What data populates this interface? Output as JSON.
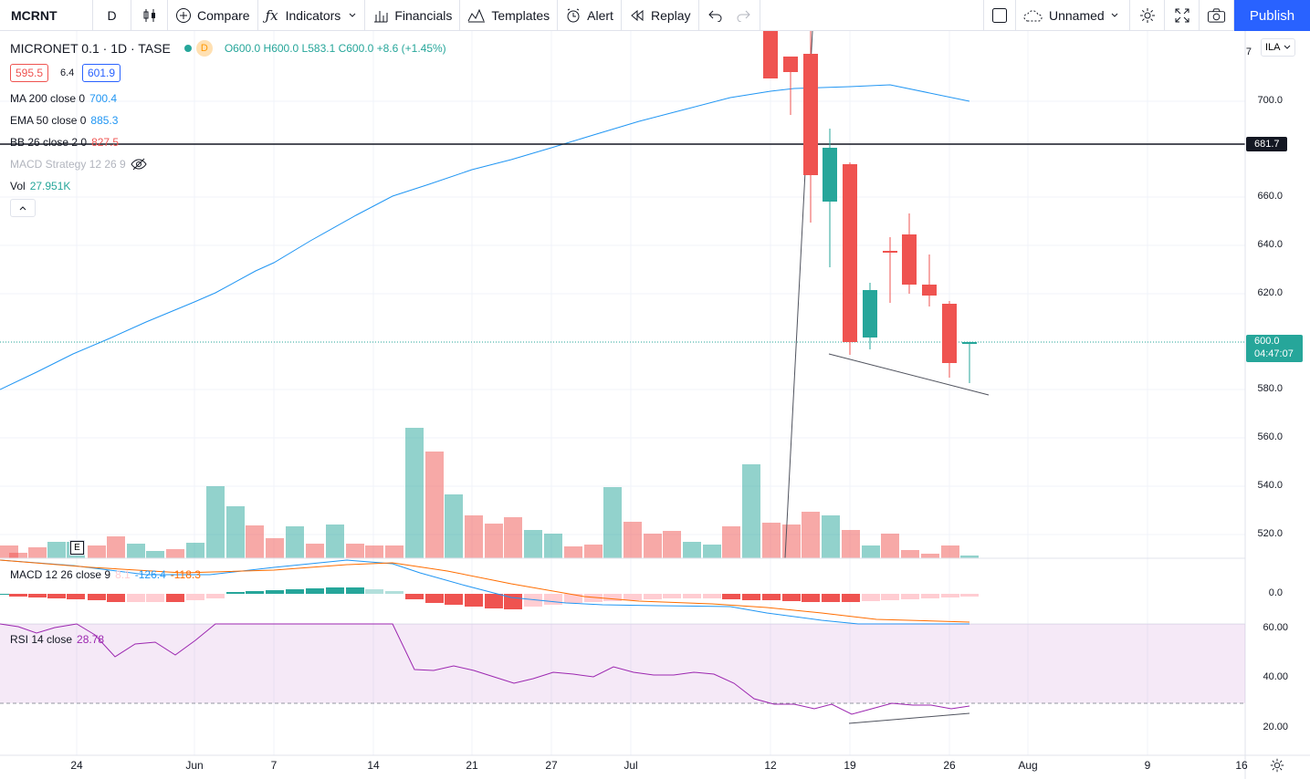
{
  "toolbar": {
    "symbol": "MCRNT",
    "interval": "D",
    "compare": "Compare",
    "indicators": "Indicators",
    "financials": "Financials",
    "templates": "Templates",
    "alert": "Alert",
    "replay": "Replay",
    "layout_name": "Unnamed",
    "publish": "Publish"
  },
  "legend": {
    "title": "MICRONET 0.1 · 1D · TASE",
    "badge": "D",
    "ohlc": "O600.0 H600.0 L583.1 C600.0 +8.6 (+1.45%)",
    "bid": "595.5",
    "spread": "6.4",
    "ask": "601.9",
    "ma_label": "MA 200 close 0",
    "ma_value": "700.4",
    "ema_label": "EMA 50 close 0",
    "ema_value": "885.3",
    "bb_label": "BB 26 close 2 0",
    "bb_value": "827.5",
    "macd_strategy": "MACD Strategy 12 26 9",
    "vol_label": "Vol",
    "vol_value": "27.951K",
    "collapse": "^"
  },
  "macd_legend": {
    "label": "MACD 12 26 close 9",
    "v1": "8.1",
    "v2": "-126.4",
    "v3": "-118.3"
  },
  "rsi_legend": {
    "label": "RSI 14 close",
    "value": "28.78"
  },
  "price_axis": {
    "currency": "ILA",
    "top_partial": "7",
    "ticks": [
      "700.0",
      "660.0",
      "640.0",
      "620.0",
      "580.0",
      "560.0",
      "540.0",
      "520.0"
    ],
    "line_label": "681.7",
    "last_price": "600.0",
    "countdown": "04:47:07"
  },
  "macd_axis": {
    "tick": "0.0"
  },
  "rsi_axis": {
    "ticks": [
      "60.00",
      "40.00",
      "20.00"
    ]
  },
  "time_axis": {
    "labels": [
      "24",
      "Jun",
      "7",
      "14",
      "21",
      "27",
      "Jul",
      "12",
      "19",
      "26",
      "Aug",
      "9",
      "16"
    ]
  },
  "earnings_marker": "E",
  "colors": {
    "up": "#26a69a",
    "down": "#ef5350",
    "ma": "#2196f3",
    "accent": "#2962ff",
    "rsi": "#9c27b0"
  }
}
